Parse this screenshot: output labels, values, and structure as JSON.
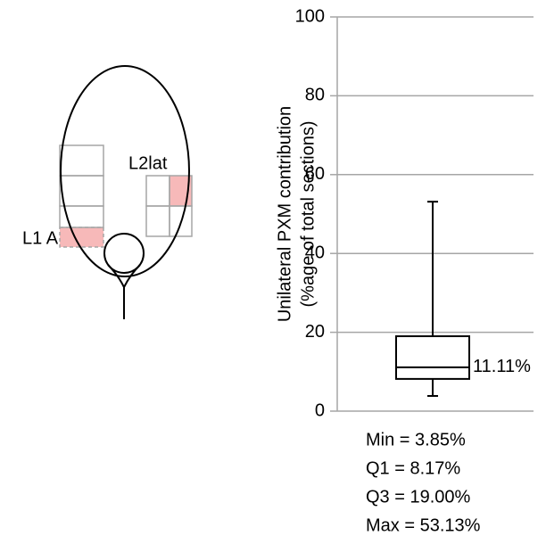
{
  "chart_data": {
    "type": "box",
    "ylabel": [
      "Unilateral PXM contribution",
      "(%age of total sections)"
    ],
    "ylim": [
      0,
      100
    ],
    "yticks": [
      0,
      20,
      40,
      60,
      80,
      100
    ],
    "grid": true,
    "min": 3.85,
    "q1": 8.17,
    "median": 11.11,
    "q3": 19.0,
    "max": 53.13,
    "median_label": "11.11%",
    "annotations": [
      "Min = 3.85%",
      "Q1 = 8.17%",
      "Q3 = 19.00%",
      "Max = 53.13%"
    ],
    "color": "#000000"
  },
  "diagram": {
    "labels": [
      "L1 A",
      "L2lat"
    ]
  }
}
